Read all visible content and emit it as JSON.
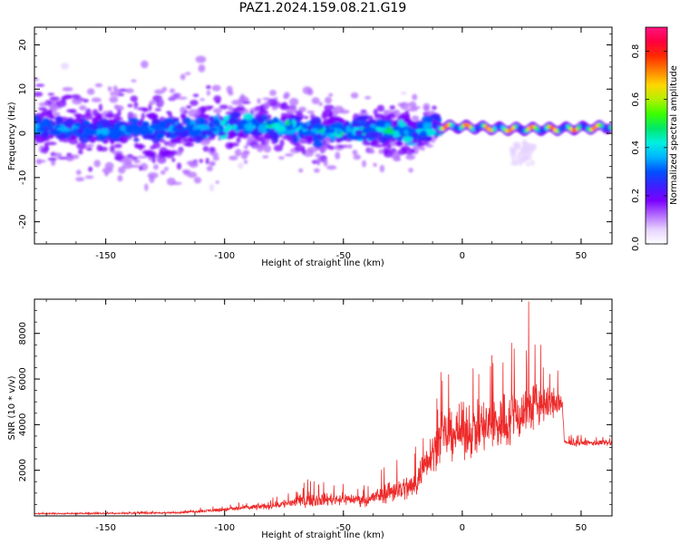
{
  "figure_title": "PAZ1.2024.159.08.21.G19",
  "colors": {
    "snr_line": "#ee2a2a",
    "axis": "#000000",
    "colormap": [
      "#ffffff",
      "#e6d2ff",
      "#b36bff",
      "#7a00ff",
      "#3b20ff",
      "#0050ff",
      "#00b4ff",
      "#00f0e0",
      "#00e86a",
      "#3cff00",
      "#b4f000",
      "#ffd700",
      "#ff8000",
      "#ff2a00",
      "#ff0040",
      "#ff1480"
    ]
  },
  "chart_data": [
    {
      "type": "heatmap",
      "title": "PAZ1.2024.159.08.21.G19",
      "xlabel": "Height of straight line (km)",
      "ylabel": "Frequency (Hz)",
      "xlim": [
        -180,
        63
      ],
      "ylim": [
        -25,
        24
      ],
      "xticks": [
        -150,
        -100,
        -50,
        0,
        50
      ],
      "yticks": [
        -20,
        -10,
        0,
        10,
        20
      ],
      "colorbar": {
        "label": "Normalized spectral amplitude",
        "range": [
          0.0,
          0.9
        ],
        "ticks": [
          "0.0",
          "0.2",
          "0.4",
          "0.6",
          "0.8"
        ]
      },
      "ridge_frequency_profile": [
        {
          "x": -180,
          "y": 1.5
        },
        {
          "x": -150,
          "y": 0.5
        },
        {
          "x": -120,
          "y": 1.0
        },
        {
          "x": -100,
          "y": 1.5
        },
        {
          "x": -80,
          "y": 1.5
        },
        {
          "x": -60,
          "y": 0.5
        },
        {
          "x": -40,
          "y": 1.0
        },
        {
          "x": -20,
          "y": 0.0
        },
        {
          "x": -12,
          "y": 1.5
        },
        {
          "x": 0,
          "y": 1.5
        },
        {
          "x": 20,
          "y": 1.0
        },
        {
          "x": 40,
          "y": 1.0
        },
        {
          "x": 63,
          "y": 1.5
        }
      ]
    },
    {
      "type": "line",
      "xlabel": "Height of straight line (km)",
      "ylabel": "SNR (10 * v/v)",
      "xlim": [
        -180,
        63
      ],
      "ylim": [
        0,
        9500
      ],
      "xticks": [
        -150,
        -100,
        -50,
        0,
        50
      ],
      "yticks": [
        2000,
        4000,
        6000,
        8000
      ],
      "series": [
        {
          "envelope": [
            {
              "x": -180,
              "mean": 100,
              "spread": 60
            },
            {
              "x": -150,
              "mean": 110,
              "spread": 60
            },
            {
              "x": -120,
              "mean": 140,
              "spread": 70
            },
            {
              "x": -100,
              "mean": 280,
              "spread": 180
            },
            {
              "x": -80,
              "mean": 450,
              "spread": 300
            },
            {
              "x": -65,
              "mean": 700,
              "spread": 600
            },
            {
              "x": -50,
              "mean": 750,
              "spread": 500
            },
            {
              "x": -40,
              "mean": 700,
              "spread": 500
            },
            {
              "x": -30,
              "mean": 1100,
              "spread": 1000
            },
            {
              "x": -20,
              "mean": 1300,
              "spread": 1200
            },
            {
              "x": -15,
              "mean": 2500,
              "spread": 1500
            },
            {
              "x": -8,
              "mean": 3500,
              "spread": 2000
            },
            {
              "x": 0,
              "mean": 3700,
              "spread": 2200
            },
            {
              "x": 10,
              "mean": 3900,
              "spread": 2500
            },
            {
              "x": 20,
              "mean": 4200,
              "spread": 2500
            },
            {
              "x": 30,
              "mean": 4800,
              "spread": 2200
            },
            {
              "x": 42,
              "mean": 5000,
              "spread": 1000
            },
            {
              "x": 43,
              "mean": 3200,
              "spread": 250
            },
            {
              "x": 63,
              "mean": 3200,
              "spread": 250
            }
          ],
          "peaks": [
            {
              "x": 28,
              "y": 9400
            },
            {
              "x": 33,
              "y": 7500
            },
            {
              "x": 13,
              "y": 6700
            },
            {
              "x": -9,
              "y": 6300
            },
            {
              "x": 22,
              "y": 6200
            },
            {
              "x": -65,
              "y": 1600
            }
          ]
        }
      ]
    }
  ]
}
